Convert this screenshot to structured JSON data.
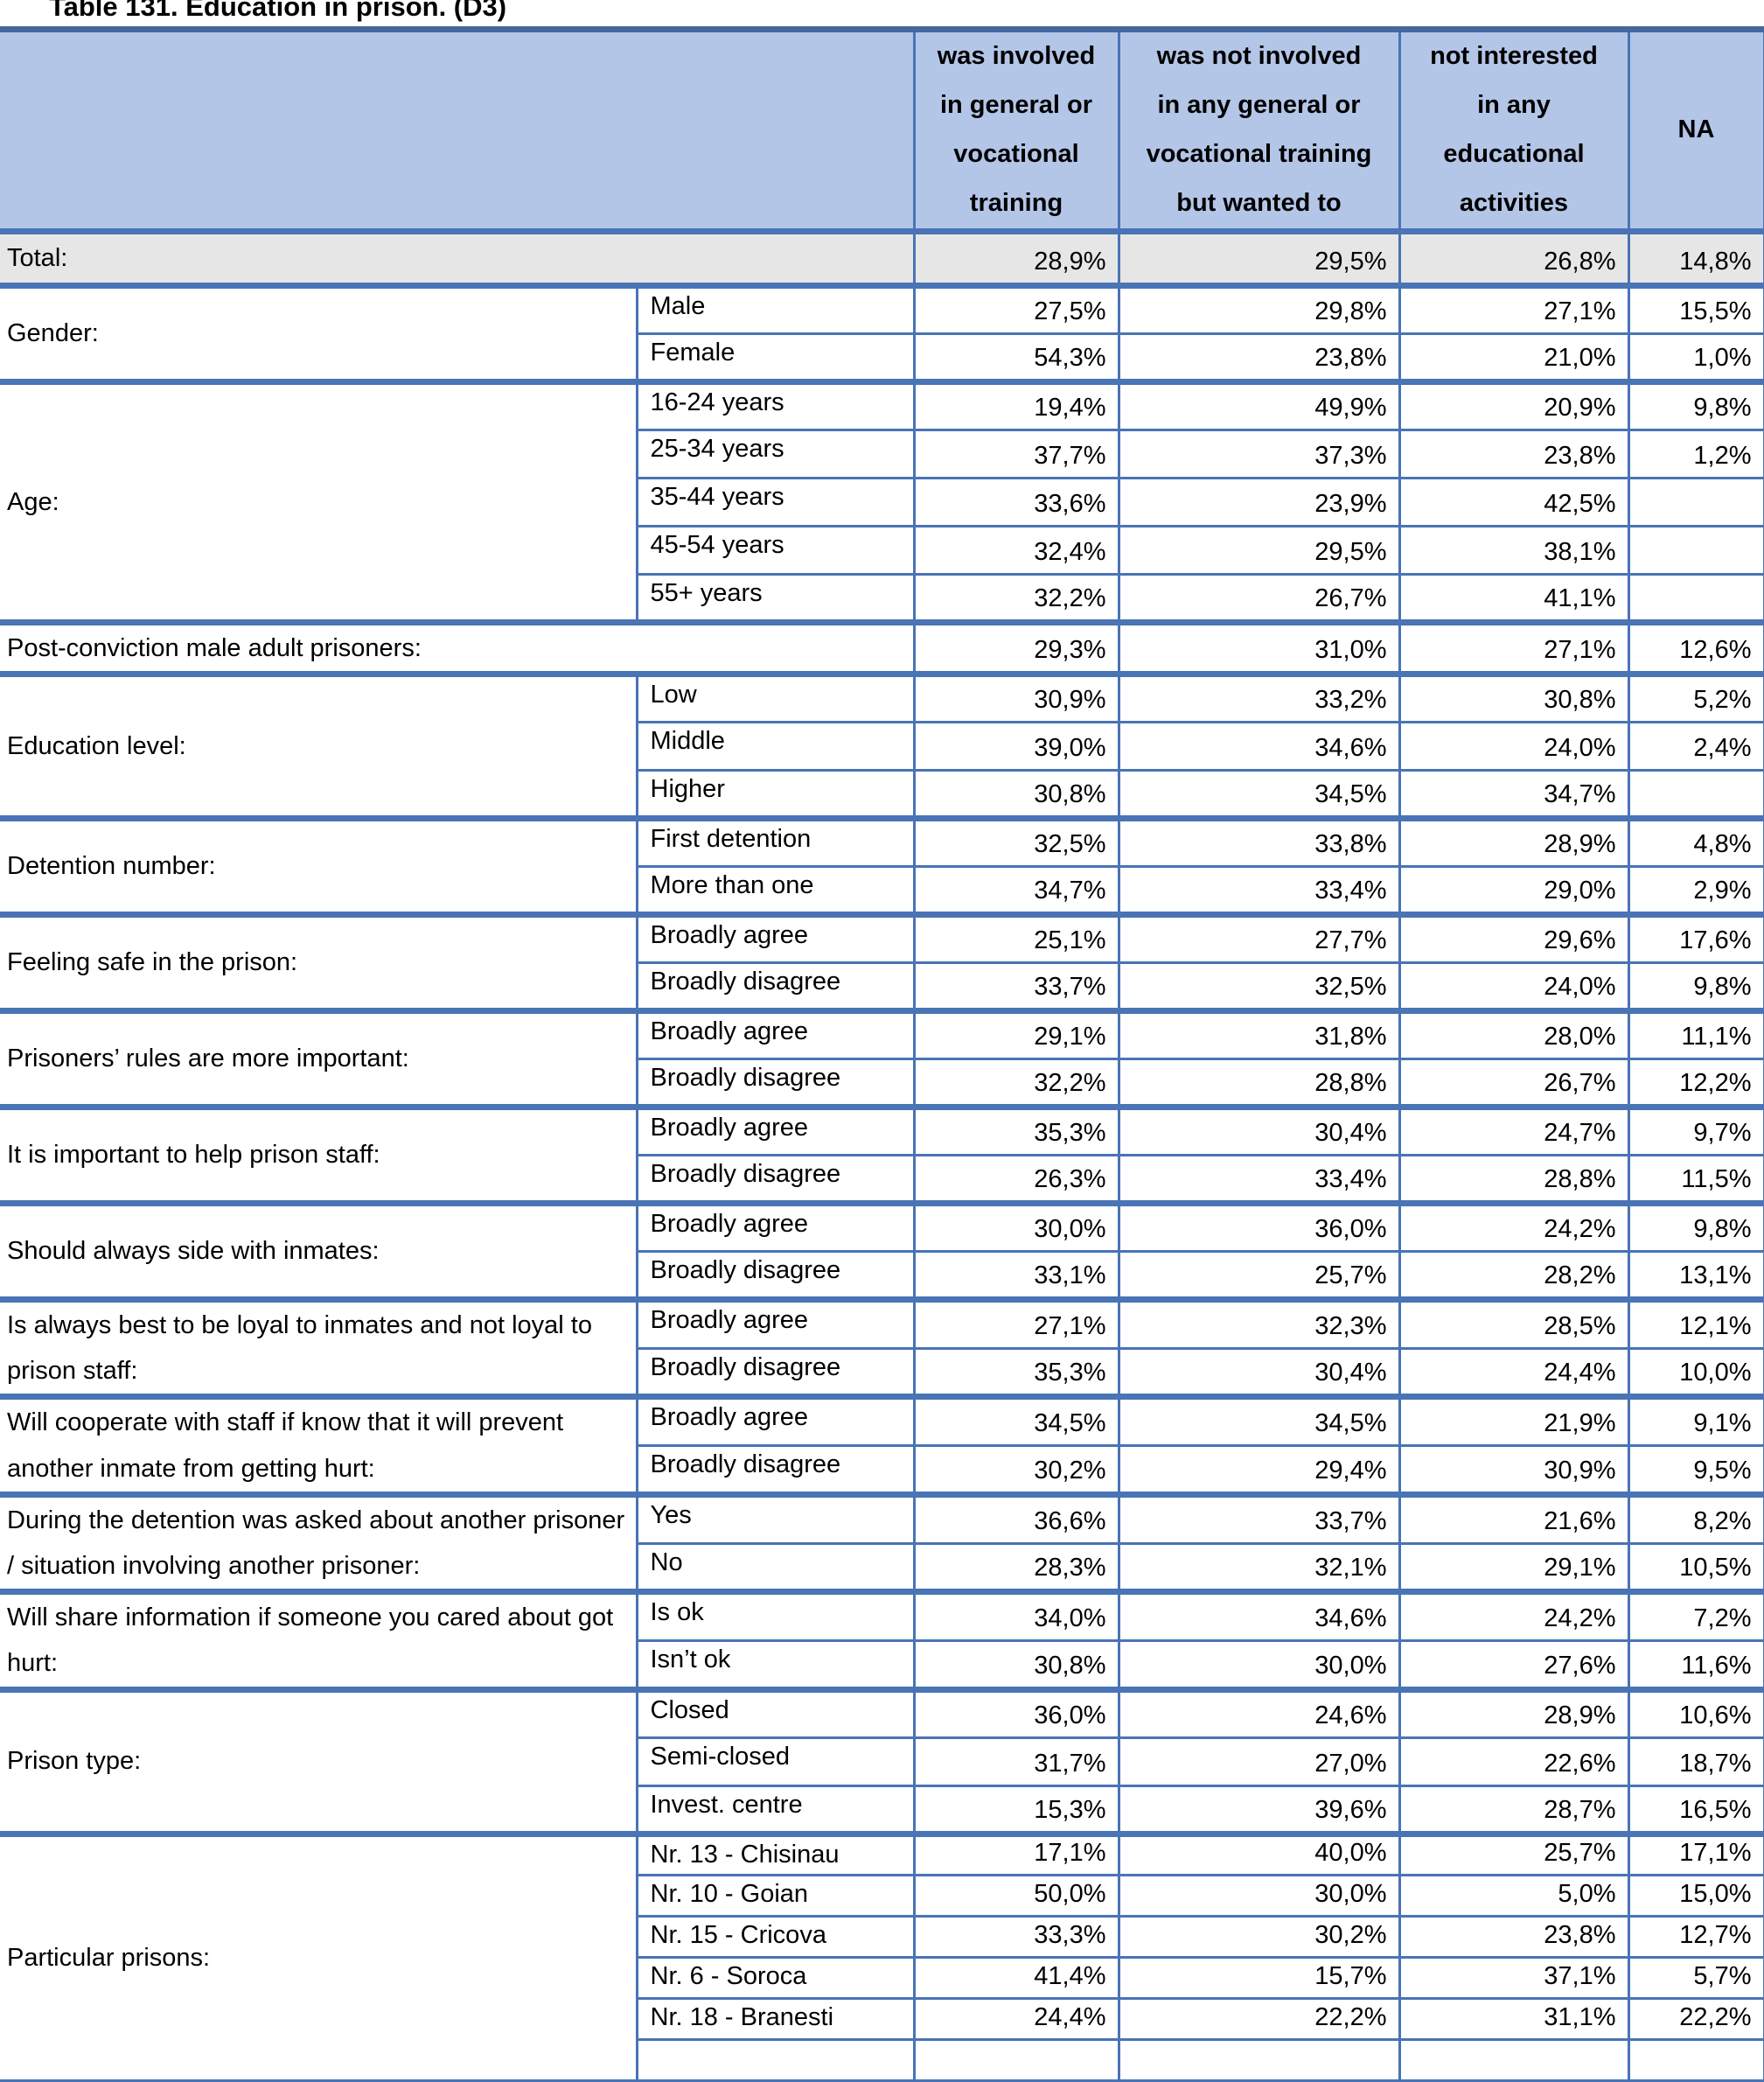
{
  "page": {
    "title": "Table 131. Education in prison. (D3)"
  },
  "colors": {
    "header_bg": "#b4c6e7",
    "total_bg": "#e7e6e6",
    "border_blue": "#4974b5",
    "border_dark_blue": "#44679f"
  },
  "table": {
    "columns": [
      "was involved\nin general or\nvocational\ntraining",
      "was not involved\nin any general or\nvocational training\nbut wanted to",
      "not interested\nin any\neducational\nactivities",
      "NA"
    ],
    "total_row": {
      "label": "Total:",
      "values": [
        "28,9%",
        "29,5%",
        "26,8%",
        "14,8%"
      ]
    },
    "groups": [
      {
        "label": "Gender:",
        "rows": [
          {
            "sub": "Male",
            "values": [
              "27,5%",
              "29,8%",
              "27,1%",
              "15,5%"
            ]
          },
          {
            "sub": "Female",
            "values": [
              "54,3%",
              "23,8%",
              "21,0%",
              "1,0%"
            ]
          }
        ]
      },
      {
        "label": "Age:",
        "rows": [
          {
            "sub": "16-24 years",
            "values": [
              "19,4%",
              "49,9%",
              "20,9%",
              "9,8%"
            ]
          },
          {
            "sub": "25-34 years",
            "values": [
              "37,7%",
              "37,3%",
              "23,8%",
              "1,2%"
            ]
          },
          {
            "sub": "35-44 years",
            "values": [
              "33,6%",
              "23,9%",
              "42,5%",
              ""
            ]
          },
          {
            "sub": "45-54 years",
            "values": [
              "32,4%",
              "29,5%",
              "38,1%",
              ""
            ]
          },
          {
            "sub": "55+ years",
            "values": [
              "32,2%",
              "26,7%",
              "41,1%",
              ""
            ]
          }
        ]
      },
      {
        "label": "Post-conviction male adult prisoners:",
        "rows": [
          {
            "sub": null,
            "values": [
              "29,3%",
              "31,0%",
              "27,1%",
              "12,6%"
            ]
          }
        ]
      },
      {
        "label": "Education level:",
        "rows": [
          {
            "sub": "Low",
            "values": [
              "30,9%",
              "33,2%",
              "30,8%",
              "5,2%"
            ]
          },
          {
            "sub": "Middle",
            "values": [
              "39,0%",
              "34,6%",
              "24,0%",
              "2,4%"
            ]
          },
          {
            "sub": "Higher",
            "values": [
              "30,8%",
              "34,5%",
              "34,7%",
              ""
            ]
          }
        ]
      },
      {
        "label": "Detention number:",
        "rows": [
          {
            "sub": "First detention",
            "values": [
              "32,5%",
              "33,8%",
              "28,9%",
              "4,8%"
            ]
          },
          {
            "sub": "More than one",
            "values": [
              "34,7%",
              "33,4%",
              "29,0%",
              "2,9%"
            ]
          }
        ]
      },
      {
        "label": "Feeling safe in the prison:",
        "rows": [
          {
            "sub": "Broadly agree",
            "values": [
              "25,1%",
              "27,7%",
              "29,6%",
              "17,6%"
            ]
          },
          {
            "sub": "Broadly disagree",
            "values": [
              "33,7%",
              "32,5%",
              "24,0%",
              "9,8%"
            ]
          }
        ]
      },
      {
        "label": "Prisoners’ rules are more important:",
        "rows": [
          {
            "sub": "Broadly agree",
            "values": [
              "29,1%",
              "31,8%",
              "28,0%",
              "11,1%"
            ]
          },
          {
            "sub": "Broadly disagree",
            "values": [
              "32,2%",
              "28,8%",
              "26,7%",
              "12,2%"
            ]
          }
        ]
      },
      {
        "label": "It is important to help prison staff:",
        "rows": [
          {
            "sub": "Broadly agree",
            "values": [
              "35,3%",
              "30,4%",
              "24,7%",
              "9,7%"
            ]
          },
          {
            "sub": "Broadly disagree",
            "values": [
              "26,3%",
              "33,4%",
              "28,8%",
              "11,5%"
            ]
          }
        ]
      },
      {
        "label": "Should always side with inmates:",
        "rows": [
          {
            "sub": "Broadly agree",
            "values": [
              "30,0%",
              "36,0%",
              "24,2%",
              "9,8%"
            ]
          },
          {
            "sub": "Broadly disagree",
            "values": [
              "33,1%",
              "25,7%",
              "28,2%",
              "13,1%"
            ]
          }
        ]
      },
      {
        "label": "Is always best to be loyal to inmates and not loyal to prison staff:",
        "rows": [
          {
            "sub": "Broadly agree",
            "values": [
              "27,1%",
              "32,3%",
              "28,5%",
              "12,1%"
            ]
          },
          {
            "sub": "Broadly disagree",
            "values": [
              "35,3%",
              "30,4%",
              "24,4%",
              "10,0%"
            ]
          }
        ]
      },
      {
        "label": "Will cooperate with staff if know that it will prevent another inmate from getting hurt:",
        "rows": [
          {
            "sub": "Broadly agree",
            "values": [
              "34,5%",
              "34,5%",
              "21,9%",
              "9,1%"
            ]
          },
          {
            "sub": "Broadly disagree",
            "values": [
              "30,2%",
              "29,4%",
              "30,9%",
              "9,5%"
            ]
          }
        ]
      },
      {
        "label": "During the detention was asked about another prisoner / situation involving another prisoner:",
        "rows": [
          {
            "sub": "Yes",
            "values": [
              "36,6%",
              "33,7%",
              "21,6%",
              "8,2%"
            ]
          },
          {
            "sub": "No",
            "values": [
              "28,3%",
              "32,1%",
              "29,1%",
              "10,5%"
            ]
          }
        ]
      },
      {
        "label": "Will share information if someone you cared about got hurt:",
        "rows": [
          {
            "sub": "Is ok",
            "values": [
              "34,0%",
              "34,6%",
              "24,2%",
              "7,2%"
            ]
          },
          {
            "sub": "Isn’t ok",
            "values": [
              "30,8%",
              "30,0%",
              "27,6%",
              "11,6%"
            ]
          }
        ]
      },
      {
        "label": "Prison type:",
        "rows": [
          {
            "sub": "Closed",
            "values": [
              "36,0%",
              "24,6%",
              "28,9%",
              "10,6%"
            ]
          },
          {
            "sub": "Semi-closed",
            "values": [
              "31,7%",
              "27,0%",
              "22,6%",
              "18,7%"
            ]
          },
          {
            "sub": "Invest. centre",
            "values": [
              "15,3%",
              "39,6%",
              "28,7%",
              "16,5%"
            ]
          }
        ]
      },
      {
        "label": "Particular prisons:",
        "small": true,
        "rows": [
          {
            "sub": "Nr. 13 - Chisinau",
            "values": [
              "17,1%",
              "40,0%",
              "25,7%",
              "17,1%"
            ]
          },
          {
            "sub": "Nr. 10 - Goian",
            "values": [
              "50,0%",
              "30,0%",
              "5,0%",
              "15,0%"
            ]
          },
          {
            "sub": "Nr. 15 - Cricova",
            "values": [
              "33,3%",
              "30,2%",
              "23,8%",
              "12,7%"
            ]
          },
          {
            "sub": "Nr. 6 - Soroca",
            "values": [
              "41,4%",
              "15,7%",
              "37,1%",
              "5,7%"
            ]
          },
          {
            "sub": "Nr. 18 - Branesti",
            "values": [
              "24,4%",
              "22,2%",
              "31,1%",
              "22,2%"
            ]
          }
        ]
      }
    ]
  }
}
